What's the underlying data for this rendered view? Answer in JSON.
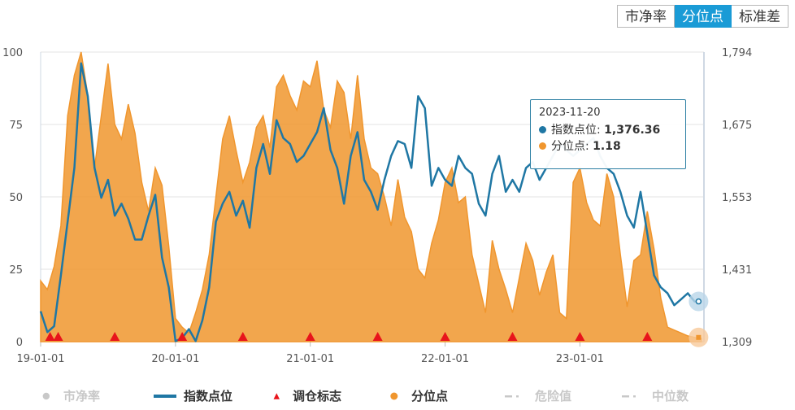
{
  "tabs": [
    {
      "label": "市净率",
      "active": false
    },
    {
      "label": "分位点",
      "active": true
    },
    {
      "label": "标准差",
      "active": false
    }
  ],
  "tooltip": {
    "date": "2023-11-20",
    "index_label": "指数点位",
    "index_value": "1,376.36",
    "pct_label": "分位点",
    "pct_value": "1.18"
  },
  "legend": {
    "pb": "市净率",
    "index": "指数点位",
    "marker": "调仓标志",
    "percentile": "分位点",
    "danger": "危险值",
    "median": "中位数"
  },
  "colors": {
    "index": "#1f77a4",
    "percentile": "#f0962e",
    "marker": "#e8141b",
    "active_tab": "#1a9bd6"
  },
  "chart_data": {
    "type": "area",
    "x_ticks": [
      "19-01-01",
      "20-01-01",
      "21-01-01",
      "22-01-01",
      "23-01-01"
    ],
    "x_range": [
      2019.0,
      2023.92
    ],
    "y_left_ticks": [
      "0",
      "25",
      "50",
      "75",
      "100"
    ],
    "y_left_range": [
      0,
      100
    ],
    "y_right_ticks": [
      "1,309",
      "1,431",
      "1,553",
      "1,675",
      "1,794"
    ],
    "y_right_range": [
      1309,
      1794
    ],
    "series": [
      {
        "name": "分位点",
        "axis": "left",
        "x": [
          2019.0,
          2019.05,
          2019.1,
          2019.15,
          2019.2,
          2019.25,
          2019.3,
          2019.35,
          2019.4,
          2019.45,
          2019.5,
          2019.55,
          2019.6,
          2019.65,
          2019.7,
          2019.75,
          2019.8,
          2019.85,
          2019.9,
          2019.95,
          2020.0,
          2020.05,
          2020.1,
          2020.15,
          2020.2,
          2020.25,
          2020.3,
          2020.35,
          2020.4,
          2020.45,
          2020.5,
          2020.55,
          2020.6,
          2020.65,
          2020.7,
          2020.75,
          2020.8,
          2020.85,
          2020.9,
          2020.95,
          2021.0,
          2021.05,
          2021.1,
          2021.15,
          2021.2,
          2021.25,
          2021.3,
          2021.35,
          2021.4,
          2021.45,
          2021.5,
          2021.55,
          2021.6,
          2021.65,
          2021.7,
          2021.75,
          2021.8,
          2021.85,
          2021.9,
          2021.95,
          2022.0,
          2022.05,
          2022.1,
          2022.15,
          2022.2,
          2022.25,
          2022.3,
          2022.35,
          2022.4,
          2022.45,
          2022.5,
          2022.55,
          2022.6,
          2022.65,
          2022.7,
          2022.75,
          2022.8,
          2022.85,
          2022.9,
          2022.95,
          2023.0,
          2023.05,
          2023.1,
          2023.15,
          2023.2,
          2023.25,
          2023.3,
          2023.35,
          2023.4,
          2023.45,
          2023.5,
          2023.55,
          2023.6,
          2023.65,
          2023.7,
          2023.75,
          2023.8,
          2023.85,
          2023.88,
          2023.9
        ],
        "values": [
          21,
          18,
          26,
          40,
          78,
          92,
          100,
          85,
          60,
          78,
          96,
          75,
          70,
          82,
          72,
          55,
          45,
          60,
          54,
          33,
          8,
          5,
          3,
          10,
          18,
          30,
          50,
          70,
          78,
          66,
          55,
          62,
          74,
          78,
          67,
          88,
          92,
          85,
          80,
          90,
          88,
          97,
          80,
          74,
          90,
          86,
          70,
          92,
          70,
          60,
          58,
          50,
          40,
          56,
          43,
          38,
          25,
          22,
          34,
          42,
          55,
          60,
          48,
          50,
          30,
          20,
          10,
          35,
          25,
          18,
          10,
          22,
          34,
          28,
          16,
          24,
          30,
          10,
          8,
          55,
          60,
          48,
          42,
          40,
          58,
          50,
          30,
          12,
          28,
          30,
          45,
          32,
          15,
          5,
          4,
          3,
          2,
          1.5,
          1.18,
          1.18
        ]
      },
      {
        "name": "指数点位",
        "axis": "right",
        "x": [
          2019.0,
          2019.05,
          2019.1,
          2019.15,
          2019.2,
          2019.25,
          2019.3,
          2019.35,
          2019.4,
          2019.45,
          2019.5,
          2019.55,
          2019.6,
          2019.65,
          2019.7,
          2019.75,
          2019.8,
          2019.85,
          2019.9,
          2019.95,
          2020.0,
          2020.05,
          2020.1,
          2020.15,
          2020.2,
          2020.25,
          2020.3,
          2020.35,
          2020.4,
          2020.45,
          2020.5,
          2020.55,
          2020.6,
          2020.65,
          2020.7,
          2020.75,
          2020.8,
          2020.85,
          2020.9,
          2020.95,
          2021.0,
          2021.05,
          2021.1,
          2021.15,
          2021.2,
          2021.25,
          2021.3,
          2021.35,
          2021.4,
          2021.45,
          2021.5,
          2021.55,
          2021.6,
          2021.65,
          2021.7,
          2021.75,
          2021.8,
          2021.85,
          2021.9,
          2021.95,
          2022.0,
          2022.05,
          2022.1,
          2022.15,
          2022.2,
          2022.25,
          2022.3,
          2022.35,
          2022.4,
          2022.45,
          2022.5,
          2022.55,
          2022.6,
          2022.65,
          2022.7,
          2022.75,
          2022.8,
          2022.85,
          2022.9,
          2022.95,
          2023.0,
          2023.05,
          2023.1,
          2023.15,
          2023.2,
          2023.25,
          2023.3,
          2023.35,
          2023.4,
          2023.45,
          2023.5,
          2023.55,
          2023.6,
          2023.65,
          2023.7,
          2023.75,
          2023.8,
          2023.85,
          2023.88,
          2023.9
        ],
        "values": [
          1360,
          1325,
          1335,
          1420,
          1510,
          1600,
          1775,
          1720,
          1600,
          1550,
          1580,
          1520,
          1540,
          1515,
          1480,
          1480,
          1520,
          1555,
          1450,
          1400,
          1310,
          1315,
          1330,
          1310,
          1345,
          1400,
          1510,
          1540,
          1560,
          1520,
          1545,
          1500,
          1600,
          1640,
          1590,
          1680,
          1650,
          1640,
          1610,
          1620,
          1640,
          1660,
          1700,
          1630,
          1600,
          1540,
          1620,
          1660,
          1580,
          1560,
          1530,
          1580,
          1620,
          1645,
          1640,
          1600,
          1720,
          1700,
          1570,
          1600,
          1580,
          1570,
          1620,
          1600,
          1590,
          1540,
          1520,
          1590,
          1620,
          1560,
          1580,
          1560,
          1600,
          1610,
          1580,
          1600,
          1620,
          1640,
          1630,
          1620,
          1630,
          1640,
          1650,
          1620,
          1600,
          1590,
          1560,
          1520,
          1500,
          1560,
          1490,
          1420,
          1400,
          1390,
          1370,
          1380,
          1390,
          1376.36,
          1376.36,
          1376.36
        ]
      }
    ],
    "rebalance_markers_x": [
      2019.07,
      2019.13,
      2019.55,
      2020.05,
      2020.5,
      2021.0,
      2021.5,
      2022.0,
      2022.5,
      2023.0,
      2023.5
    ],
    "tooltip_x": 2023.88,
    "grid": true
  }
}
